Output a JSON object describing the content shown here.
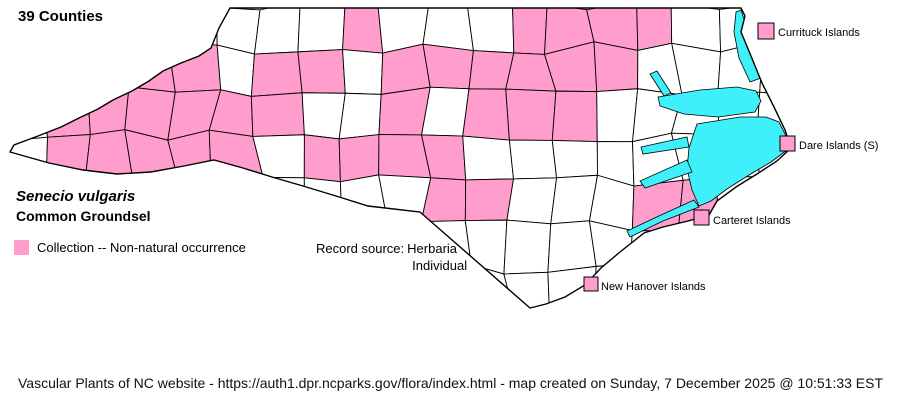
{
  "title": "39 Counties",
  "species": {
    "scientific_name": "Senecio vulgaris",
    "common_name": "Common Groundsel"
  },
  "legend": {
    "label": "Collection -- Non-natural occurrence"
  },
  "record_source": {
    "label": "Record source:",
    "sources": [
      "Herbaria",
      "Individual"
    ]
  },
  "islands": [
    {
      "label": "Currituck Islands"
    },
    {
      "label": "Dare Islands (S)"
    },
    {
      "label": "Carteret Islands"
    },
    {
      "label": "New Hanover Islands"
    }
  ],
  "footer": "Vascular Plants of NC website - https://auth1.dpr.ncparks.gov/flora/index.html - map created on Sunday, 7 December 2025 @ 10:51:33 EST",
  "colors": {
    "occurrence_pink": "#FF9DCD",
    "water_cyan": "#3FEFFA",
    "county_border": "#000000",
    "background": "#FFFFFF"
  },
  "map": {
    "region": "North Carolina counties",
    "highlighted_county_count": 39,
    "pink_cells": [
      [
        8,
        0
      ],
      [
        12,
        0
      ],
      [
        13,
        0
      ],
      [
        14,
        0
      ],
      [
        15,
        0
      ],
      [
        2,
        1
      ],
      [
        3,
        1
      ],
      [
        4,
        1
      ],
      [
        6,
        1
      ],
      [
        7,
        1
      ],
      [
        9,
        1
      ],
      [
        10,
        1
      ],
      [
        11,
        1
      ],
      [
        12,
        1
      ],
      [
        13,
        1
      ],
      [
        14,
        1
      ],
      [
        1,
        2
      ],
      [
        2,
        2
      ],
      [
        3,
        2
      ],
      [
        4,
        2
      ],
      [
        5,
        2
      ],
      [
        6,
        2
      ],
      [
        9,
        2
      ],
      [
        11,
        2
      ],
      [
        12,
        2
      ],
      [
        13,
        2
      ],
      [
        1,
        3
      ],
      [
        2,
        3
      ],
      [
        3,
        3
      ],
      [
        4,
        3
      ],
      [
        5,
        3
      ],
      [
        7,
        3
      ],
      [
        8,
        3
      ],
      [
        9,
        3
      ],
      [
        10,
        3
      ],
      [
        10,
        4
      ],
      [
        11,
        4
      ],
      [
        15,
        4
      ],
      [
        16,
        4
      ]
    ]
  }
}
